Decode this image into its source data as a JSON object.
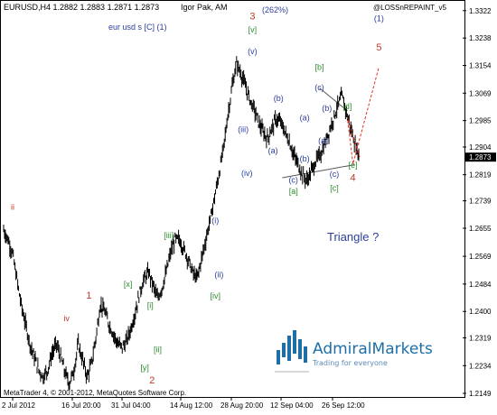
{
  "header": {
    "symbol": "EURUSD,H4 1.2882 1.2883 1.2871 1.2873",
    "author": "Igor Pak, AM",
    "pct": "(262%)",
    "indicator": "@LOSSnREPAINT_v5",
    "subtitle": "eur usd s [C] (1)"
  },
  "footer": {
    "copyright": "MetaTrader 4, © 2001-2012, MetaQuotes Software Corp."
  },
  "logo": {
    "name_a": "Admiral",
    "name_b": "Markets",
    "tagline": "Trading for everyone"
  },
  "colors": {
    "bg": "#ffffff",
    "bars": "#000000",
    "red": "#c0392b",
    "green": "#2e8b2e",
    "blue": "#2c3e9c",
    "logo": "#1e6fa8"
  },
  "chart_data": {
    "type": "bar",
    "ylim": [
      1.2149,
      1.3338
    ],
    "y_ticks": [
      "1.3322",
      "1.3238",
      "1.3154",
      "1.3069",
      "1.2985",
      "1.2904",
      "1.2819",
      "1.2739",
      "1.2655",
      "1.2569",
      "1.2484",
      "1.2400",
      "1.2319",
      "1.2234",
      "1.2149"
    ],
    "x_ticks": [
      "2 Jul 2012",
      "16 Jul 20:00",
      "31 Jul 04:00",
      "14 Aug 12:00",
      "28 Aug 20:00",
      "12 Sep 04:00",
      "26 Sep 12:00"
    ],
    "current_price": "1.2873",
    "series": [
      {
        "values": [
          1.265,
          1.262,
          1.258,
          1.25,
          1.242,
          1.236,
          1.23,
          1.226,
          1.222,
          1.22,
          1.222,
          1.227,
          1.23,
          1.226,
          1.221,
          1.218,
          1.222,
          1.23,
          1.225,
          1.22,
          1.224,
          1.232,
          1.242,
          1.24,
          1.236,
          1.233,
          1.23,
          1.229,
          1.231,
          1.235,
          1.24,
          1.246,
          1.25,
          1.252,
          1.248,
          1.244,
          1.247,
          1.252,
          1.258,
          1.262,
          1.262,
          1.259,
          1.256,
          1.252,
          1.25,
          1.256,
          1.262,
          1.268,
          1.275,
          1.282,
          1.29,
          1.3,
          1.309,
          1.316,
          1.313,
          1.309,
          1.305,
          1.302,
          1.298,
          1.295,
          1.293,
          1.296,
          1.299,
          1.298,
          1.295,
          1.292,
          1.288,
          1.285,
          1.282,
          1.28,
          1.283,
          1.286,
          1.288,
          1.291,
          1.295,
          1.299,
          1.303,
          1.306,
          1.301,
          1.296,
          1.291,
          1.2873
        ]
      }
    ],
    "wave_labels": [
      {
        "text": "ii",
        "x": "2 Jul 2012",
        "y": 1.2712,
        "color": "red"
      },
      {
        "text": "iv",
        "x": "16 Jul 12:00",
        "y": 1.237,
        "color": "red"
      },
      {
        "text": "1",
        "x": "22 Jul 12:00",
        "y": 1.244,
        "color": "red"
      },
      {
        "text": "[x]",
        "x": "2 Aug 00:00",
        "y": 1.2475,
        "color": "green"
      },
      {
        "text": "[y]",
        "x": "6 Aug 12:00",
        "y": 1.222,
        "color": "green"
      },
      {
        "text": "2",
        "x": "8 Aug 12:00",
        "y": 1.218,
        "color": "red"
      },
      {
        "text": "[i]",
        "x": "8 Aug 00:00",
        "y": 1.241,
        "color": "green"
      },
      {
        "text": "[ii]",
        "x": "10 Aug 00:00",
        "y": 1.2275,
        "color": "green"
      },
      {
        "text": "[iii]",
        "x": "13 Aug 00:00",
        "y": 1.2625,
        "color": "green"
      },
      {
        "text": "[iv]",
        "x": "25 Aug 12:00",
        "y": 1.244,
        "color": "green"
      },
      {
        "text": "(i)",
        "x": "25 Aug 12:00",
        "y": 1.267,
        "color": "blue"
      },
      {
        "text": "(ii)",
        "x": "26 Aug 12:00",
        "y": 1.2505,
        "color": "blue"
      },
      {
        "text": "(iii)",
        "x": "2 Sep 00:00",
        "y": 1.295,
        "color": "blue"
      },
      {
        "text": "(iv)",
        "x": "3 Sep 00:00",
        "y": 1.2815,
        "color": "blue"
      },
      {
        "text": "(v)",
        "x": "4 Sep 12:00",
        "y": 1.3188,
        "color": "blue"
      },
      {
        "text": "[v]",
        "x": "4 Sep 12:00",
        "y": 1.3255,
        "color": "green"
      },
      {
        "text": "3",
        "x": "4 Sep 12:00",
        "y": 1.3295,
        "color": "red"
      },
      {
        "text": "(a)",
        "x": "10 Sep 00:00",
        "y": 1.2885,
        "color": "blue"
      },
      {
        "text": "(b)",
        "x": "11 Sep 12:00",
        "y": 1.3045,
        "color": "blue"
      },
      {
        "text": "(c)",
        "x": "15 Sep 12:00",
        "y": 1.2795,
        "color": "blue"
      },
      {
        "text": "[a]",
        "x": "15 Sep 12:00",
        "y": 1.276,
        "color": "green"
      },
      {
        "text": "(a)",
        "x": "18 Sep 12:00",
        "y": 1.2985,
        "color": "blue"
      },
      {
        "text": "(b)",
        "x": "18 Sep 12:00",
        "y": 1.286,
        "color": "blue"
      },
      {
        "text": "(c)",
        "x": "22 Sep 12:00",
        "y": 1.3078,
        "color": "blue"
      },
      {
        "text": "[b]",
        "x": "22 Sep 12:00",
        "y": 1.314,
        "color": "green"
      },
      {
        "text": "(b)",
        "x": "24 Sep 12:00",
        "y": 1.3015,
        "color": "blue"
      },
      {
        "text": "(a)",
        "x": "23 Sep 12:00",
        "y": 1.2915,
        "color": "blue"
      },
      {
        "text": "(c)",
        "x": "26 Sep 12:00",
        "y": 1.2812,
        "color": "blue"
      },
      {
        "text": "[c]",
        "x": "26 Sep 12:00",
        "y": 1.277,
        "color": "green"
      },
      {
        "text": "[d]",
        "x": "30 Sep 00:00",
        "y": 1.302,
        "color": "green"
      },
      {
        "text": "[e]",
        "x": "1 Oct 12:00",
        "y": 1.284,
        "color": "green"
      },
      {
        "text": "4",
        "x": "1 Oct 12:00",
        "y": 1.28,
        "color": "red"
      },
      {
        "text": "(1)",
        "x": "8 Oct 12:00",
        "y": 1.329,
        "color": "blue"
      },
      {
        "text": "5",
        "x": "8 Oct 12:00",
        "y": 1.32,
        "color": "red"
      }
    ],
    "annotation": "Triangle ?"
  }
}
